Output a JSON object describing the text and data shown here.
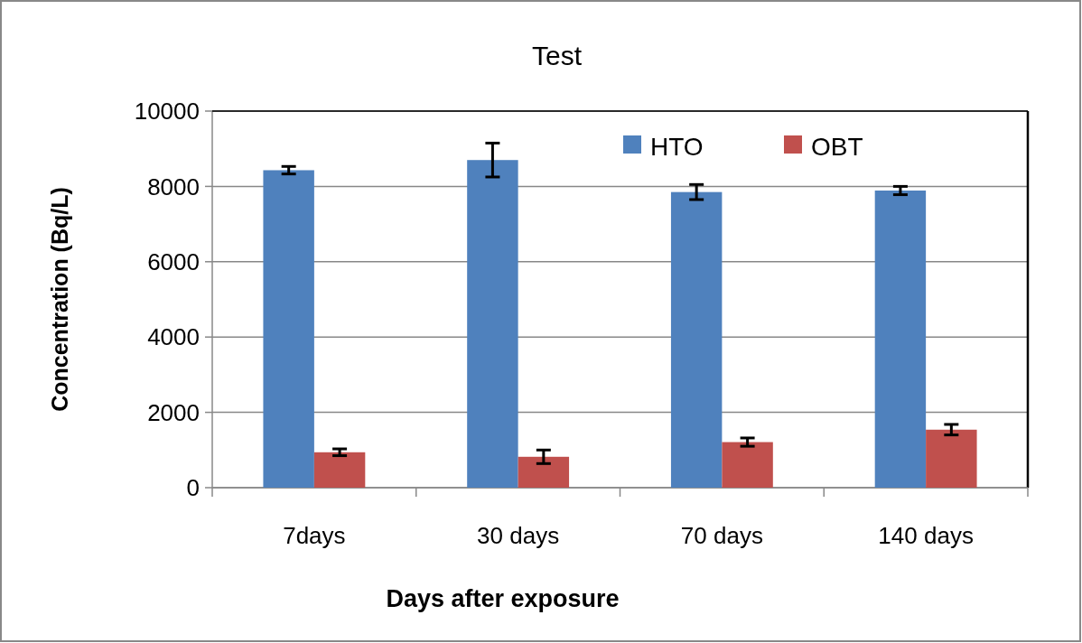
{
  "chart_data": {
    "type": "bar",
    "title": "Test",
    "xlabel": "Days after exposure",
    "ylabel": "Concentration (Bq/L)",
    "categories": [
      "7days",
      "30 days",
      "70 days",
      "140 days"
    ],
    "series": [
      {
        "name": "HTO",
        "color": "#4f81bd",
        "values": [
          8430,
          8700,
          7850,
          7890
        ],
        "errors": [
          100,
          450,
          200,
          110
        ]
      },
      {
        "name": "OBT",
        "color": "#c0504d",
        "values": [
          940,
          820,
          1210,
          1540
        ],
        "errors": [
          90,
          180,
          110,
          140
        ]
      }
    ],
    "ylim": [
      0,
      10000
    ],
    "yticks": [
      0,
      2000,
      4000,
      6000,
      8000,
      10000
    ],
    "grid": "y",
    "legend": "top right"
  }
}
